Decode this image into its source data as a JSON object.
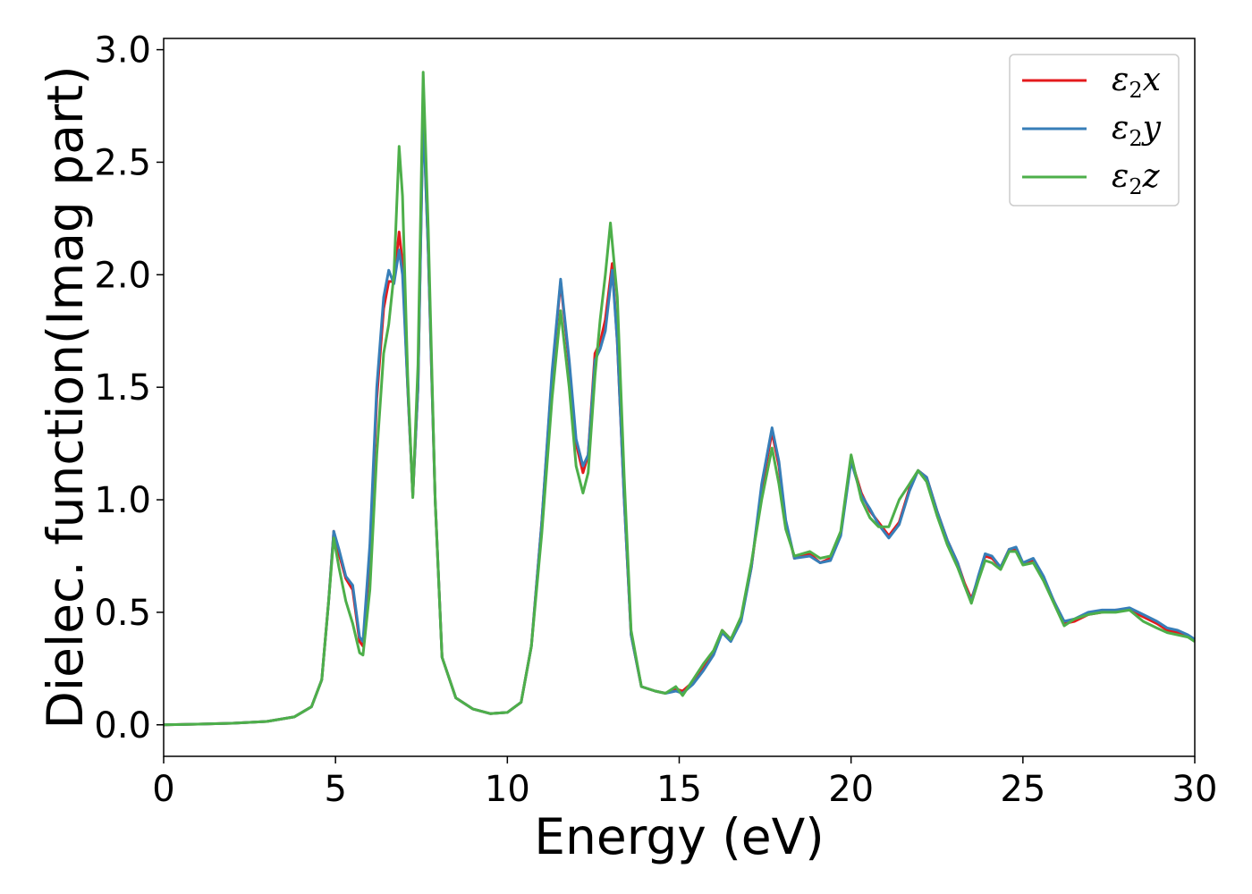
{
  "chart_data": {
    "type": "line",
    "title": "",
    "xlabel": "Energy (eV)",
    "ylabel": "Dielec. function(Imag part)",
    "xlim": [
      0,
      30
    ],
    "ylim": [
      -0.14,
      3.05
    ],
    "xticks": [
      0,
      5,
      10,
      15,
      20,
      25,
      30
    ],
    "yticks": [
      0.0,
      0.5,
      1.0,
      1.5,
      2.0,
      2.5,
      3.0
    ],
    "xtick_labels": [
      "0",
      "5",
      "10",
      "15",
      "20",
      "25",
      "30"
    ],
    "ytick_labels": [
      "0.0",
      "0.5",
      "1.0",
      "1.5",
      "2.0",
      "2.5",
      "3.0"
    ],
    "grid": false,
    "legend_position": "top-right",
    "series": [
      {
        "name": "x",
        "color": "#e41a1c",
        "points": [
          [
            0,
            0.0
          ],
          [
            1,
            0.003
          ],
          [
            2,
            0.007
          ],
          [
            3,
            0.015
          ],
          [
            3.8,
            0.035
          ],
          [
            4.3,
            0.08
          ],
          [
            4.6,
            0.2
          ],
          [
            4.8,
            0.55
          ],
          [
            4.95,
            0.86
          ],
          [
            5.1,
            0.76
          ],
          [
            5.3,
            0.65
          ],
          [
            5.5,
            0.6
          ],
          [
            5.7,
            0.37
          ],
          [
            5.8,
            0.35
          ],
          [
            6.0,
            0.75
          ],
          [
            6.2,
            1.45
          ],
          [
            6.4,
            1.85
          ],
          [
            6.55,
            1.97
          ],
          [
            6.7,
            1.97
          ],
          [
            6.85,
            2.19
          ],
          [
            6.95,
            2.05
          ],
          [
            7.1,
            1.5
          ],
          [
            7.25,
            1.02
          ],
          [
            7.4,
            1.5
          ],
          [
            7.55,
            2.75
          ],
          [
            7.7,
            2.1
          ],
          [
            7.9,
            1.0
          ],
          [
            8.1,
            0.3
          ],
          [
            8.5,
            0.12
          ],
          [
            9.0,
            0.07
          ],
          [
            9.5,
            0.05
          ],
          [
            10.0,
            0.055
          ],
          [
            10.4,
            0.1
          ],
          [
            10.7,
            0.35
          ],
          [
            11.0,
            0.9
          ],
          [
            11.3,
            1.55
          ],
          [
            11.55,
            1.97
          ],
          [
            11.8,
            1.6
          ],
          [
            12.0,
            1.25
          ],
          [
            12.2,
            1.12
          ],
          [
            12.35,
            1.2
          ],
          [
            12.55,
            1.65
          ],
          [
            12.7,
            1.7
          ],
          [
            12.85,
            1.8
          ],
          [
            13.05,
            2.05
          ],
          [
            13.2,
            1.7
          ],
          [
            13.4,
            1.0
          ],
          [
            13.6,
            0.4
          ],
          [
            13.9,
            0.17
          ],
          [
            14.3,
            0.15
          ],
          [
            14.6,
            0.14
          ],
          [
            14.9,
            0.16
          ],
          [
            15.1,
            0.15
          ],
          [
            15.4,
            0.19
          ],
          [
            15.7,
            0.25
          ],
          [
            16.0,
            0.32
          ],
          [
            16.25,
            0.42
          ],
          [
            16.5,
            0.38
          ],
          [
            16.8,
            0.47
          ],
          [
            17.1,
            0.7
          ],
          [
            17.4,
            1.05
          ],
          [
            17.7,
            1.3
          ],
          [
            17.9,
            1.15
          ],
          [
            18.1,
            0.9
          ],
          [
            18.35,
            0.74
          ],
          [
            18.8,
            0.76
          ],
          [
            19.1,
            0.72
          ],
          [
            19.4,
            0.74
          ],
          [
            19.7,
            0.85
          ],
          [
            20.0,
            1.18
          ],
          [
            20.3,
            1.03
          ],
          [
            20.55,
            0.95
          ],
          [
            20.8,
            0.9
          ],
          [
            21.1,
            0.84
          ],
          [
            21.4,
            0.9
          ],
          [
            21.7,
            1.05
          ],
          [
            21.95,
            1.13
          ],
          [
            22.2,
            1.1
          ],
          [
            22.5,
            0.95
          ],
          [
            22.8,
            0.82
          ],
          [
            23.1,
            0.72
          ],
          [
            23.3,
            0.63
          ],
          [
            23.5,
            0.56
          ],
          [
            23.7,
            0.65
          ],
          [
            23.9,
            0.75
          ],
          [
            24.1,
            0.74
          ],
          [
            24.35,
            0.7
          ],
          [
            24.6,
            0.78
          ],
          [
            24.8,
            0.78
          ],
          [
            25.0,
            0.72
          ],
          [
            25.3,
            0.73
          ],
          [
            25.6,
            0.65
          ],
          [
            25.9,
            0.55
          ],
          [
            26.2,
            0.45
          ],
          [
            26.5,
            0.46
          ],
          [
            26.9,
            0.49
          ],
          [
            27.3,
            0.5
          ],
          [
            27.7,
            0.51
          ],
          [
            28.1,
            0.51
          ],
          [
            28.5,
            0.48
          ],
          [
            28.9,
            0.45
          ],
          [
            29.2,
            0.42
          ],
          [
            29.5,
            0.41
          ],
          [
            29.8,
            0.39
          ],
          [
            30.0,
            0.38
          ]
        ]
      },
      {
        "name": "y",
        "color": "#377eb8",
        "points": [
          [
            0,
            0.0
          ],
          [
            1,
            0.003
          ],
          [
            2,
            0.007
          ],
          [
            3,
            0.015
          ],
          [
            3.8,
            0.035
          ],
          [
            4.3,
            0.08
          ],
          [
            4.6,
            0.2
          ],
          [
            4.8,
            0.55
          ],
          [
            4.95,
            0.86
          ],
          [
            5.1,
            0.78
          ],
          [
            5.3,
            0.66
          ],
          [
            5.5,
            0.62
          ],
          [
            5.7,
            0.39
          ],
          [
            5.8,
            0.37
          ],
          [
            6.0,
            0.8
          ],
          [
            6.2,
            1.5
          ],
          [
            6.4,
            1.9
          ],
          [
            6.55,
            2.02
          ],
          [
            6.7,
            1.96
          ],
          [
            6.85,
            2.11
          ],
          [
            6.95,
            2.0
          ],
          [
            7.1,
            1.5
          ],
          [
            7.25,
            1.02
          ],
          [
            7.4,
            1.5
          ],
          [
            7.55,
            2.72
          ],
          [
            7.7,
            2.1
          ],
          [
            7.9,
            1.0
          ],
          [
            8.1,
            0.3
          ],
          [
            8.5,
            0.12
          ],
          [
            9.0,
            0.07
          ],
          [
            9.5,
            0.05
          ],
          [
            10.0,
            0.055
          ],
          [
            10.4,
            0.1
          ],
          [
            10.7,
            0.35
          ],
          [
            11.0,
            0.9
          ],
          [
            11.3,
            1.57
          ],
          [
            11.55,
            1.98
          ],
          [
            11.8,
            1.62
          ],
          [
            12.0,
            1.27
          ],
          [
            12.2,
            1.15
          ],
          [
            12.35,
            1.2
          ],
          [
            12.55,
            1.62
          ],
          [
            12.7,
            1.67
          ],
          [
            12.85,
            1.75
          ],
          [
            13.05,
            2.02
          ],
          [
            13.2,
            1.7
          ],
          [
            13.4,
            1.0
          ],
          [
            13.6,
            0.4
          ],
          [
            13.9,
            0.17
          ],
          [
            14.3,
            0.15
          ],
          [
            14.6,
            0.14
          ],
          [
            14.9,
            0.15
          ],
          [
            15.1,
            0.14
          ],
          [
            15.4,
            0.18
          ],
          [
            15.7,
            0.24
          ],
          [
            16.0,
            0.31
          ],
          [
            16.25,
            0.41
          ],
          [
            16.5,
            0.37
          ],
          [
            16.8,
            0.46
          ],
          [
            17.1,
            0.7
          ],
          [
            17.4,
            1.07
          ],
          [
            17.7,
            1.32
          ],
          [
            17.9,
            1.17
          ],
          [
            18.1,
            0.91
          ],
          [
            18.35,
            0.74
          ],
          [
            18.8,
            0.75
          ],
          [
            19.1,
            0.72
          ],
          [
            19.4,
            0.73
          ],
          [
            19.7,
            0.84
          ],
          [
            20.0,
            1.17
          ],
          [
            20.3,
            1.02
          ],
          [
            20.55,
            0.96
          ],
          [
            20.8,
            0.89
          ],
          [
            21.1,
            0.83
          ],
          [
            21.4,
            0.89
          ],
          [
            21.7,
            1.04
          ],
          [
            21.95,
            1.13
          ],
          [
            22.2,
            1.1
          ],
          [
            22.5,
            0.95
          ],
          [
            22.8,
            0.82
          ],
          [
            23.1,
            0.72
          ],
          [
            23.3,
            0.62
          ],
          [
            23.5,
            0.55
          ],
          [
            23.7,
            0.66
          ],
          [
            23.9,
            0.76
          ],
          [
            24.1,
            0.75
          ],
          [
            24.35,
            0.7
          ],
          [
            24.6,
            0.78
          ],
          [
            24.8,
            0.79
          ],
          [
            25.0,
            0.72
          ],
          [
            25.3,
            0.74
          ],
          [
            25.6,
            0.66
          ],
          [
            25.9,
            0.55
          ],
          [
            26.2,
            0.46
          ],
          [
            26.5,
            0.47
          ],
          [
            26.9,
            0.5
          ],
          [
            27.3,
            0.51
          ],
          [
            27.7,
            0.51
          ],
          [
            28.1,
            0.52
          ],
          [
            28.5,
            0.49
          ],
          [
            28.9,
            0.46
          ],
          [
            29.2,
            0.43
          ],
          [
            29.5,
            0.42
          ],
          [
            29.8,
            0.4
          ],
          [
            30.0,
            0.38
          ]
        ]
      },
      {
        "name": "z",
        "color": "#4daf4a",
        "points": [
          [
            0,
            0.0
          ],
          [
            1,
            0.003
          ],
          [
            2,
            0.007
          ],
          [
            3,
            0.015
          ],
          [
            3.8,
            0.035
          ],
          [
            4.3,
            0.08
          ],
          [
            4.6,
            0.2
          ],
          [
            4.8,
            0.55
          ],
          [
            4.95,
            0.83
          ],
          [
            5.1,
            0.7
          ],
          [
            5.3,
            0.55
          ],
          [
            5.5,
            0.45
          ],
          [
            5.7,
            0.32
          ],
          [
            5.8,
            0.31
          ],
          [
            6.0,
            0.6
          ],
          [
            6.2,
            1.2
          ],
          [
            6.4,
            1.65
          ],
          [
            6.55,
            1.78
          ],
          [
            6.7,
            2.0
          ],
          [
            6.85,
            2.57
          ],
          [
            6.95,
            2.35
          ],
          [
            7.1,
            1.55
          ],
          [
            7.25,
            1.01
          ],
          [
            7.4,
            1.6
          ],
          [
            7.55,
            2.9
          ],
          [
            7.7,
            2.2
          ],
          [
            7.9,
            1.0
          ],
          [
            8.1,
            0.3
          ],
          [
            8.5,
            0.12
          ],
          [
            9.0,
            0.07
          ],
          [
            9.5,
            0.05
          ],
          [
            10.0,
            0.055
          ],
          [
            10.4,
            0.1
          ],
          [
            10.7,
            0.35
          ],
          [
            11.0,
            0.85
          ],
          [
            11.3,
            1.45
          ],
          [
            11.55,
            1.84
          ],
          [
            11.8,
            1.5
          ],
          [
            12.0,
            1.15
          ],
          [
            12.2,
            1.03
          ],
          [
            12.35,
            1.12
          ],
          [
            12.55,
            1.55
          ],
          [
            12.7,
            1.8
          ],
          [
            12.85,
            2.0
          ],
          [
            13.0,
            2.23
          ],
          [
            13.2,
            1.9
          ],
          [
            13.4,
            1.1
          ],
          [
            13.6,
            0.42
          ],
          [
            13.9,
            0.17
          ],
          [
            14.3,
            0.15
          ],
          [
            14.6,
            0.14
          ],
          [
            14.9,
            0.17
          ],
          [
            15.1,
            0.13
          ],
          [
            15.4,
            0.2
          ],
          [
            15.7,
            0.27
          ],
          [
            16.0,
            0.33
          ],
          [
            16.25,
            0.42
          ],
          [
            16.5,
            0.38
          ],
          [
            16.8,
            0.48
          ],
          [
            17.1,
            0.72
          ],
          [
            17.4,
            1.0
          ],
          [
            17.7,
            1.23
          ],
          [
            17.9,
            1.07
          ],
          [
            18.1,
            0.87
          ],
          [
            18.35,
            0.75
          ],
          [
            18.8,
            0.77
          ],
          [
            19.1,
            0.74
          ],
          [
            19.4,
            0.75
          ],
          [
            19.7,
            0.86
          ],
          [
            20.0,
            1.2
          ],
          [
            20.3,
            1.0
          ],
          [
            20.55,
            0.92
          ],
          [
            20.8,
            0.88
          ],
          [
            21.1,
            0.88
          ],
          [
            21.4,
            1.0
          ],
          [
            21.7,
            1.07
          ],
          [
            21.95,
            1.13
          ],
          [
            22.2,
            1.08
          ],
          [
            22.5,
            0.93
          ],
          [
            22.8,
            0.8
          ],
          [
            23.1,
            0.7
          ],
          [
            23.3,
            0.62
          ],
          [
            23.5,
            0.54
          ],
          [
            23.7,
            0.64
          ],
          [
            23.9,
            0.73
          ],
          [
            24.1,
            0.72
          ],
          [
            24.35,
            0.69
          ],
          [
            24.6,
            0.77
          ],
          [
            24.8,
            0.77
          ],
          [
            25.0,
            0.71
          ],
          [
            25.3,
            0.72
          ],
          [
            25.6,
            0.64
          ],
          [
            25.9,
            0.54
          ],
          [
            26.2,
            0.44
          ],
          [
            26.5,
            0.47
          ],
          [
            26.9,
            0.49
          ],
          [
            27.3,
            0.5
          ],
          [
            27.7,
            0.5
          ],
          [
            28.1,
            0.51
          ],
          [
            28.5,
            0.46
          ],
          [
            28.9,
            0.43
          ],
          [
            29.2,
            0.41
          ],
          [
            29.5,
            0.4
          ],
          [
            29.8,
            0.39
          ],
          [
            30.0,
            0.37
          ]
        ]
      }
    ]
  }
}
